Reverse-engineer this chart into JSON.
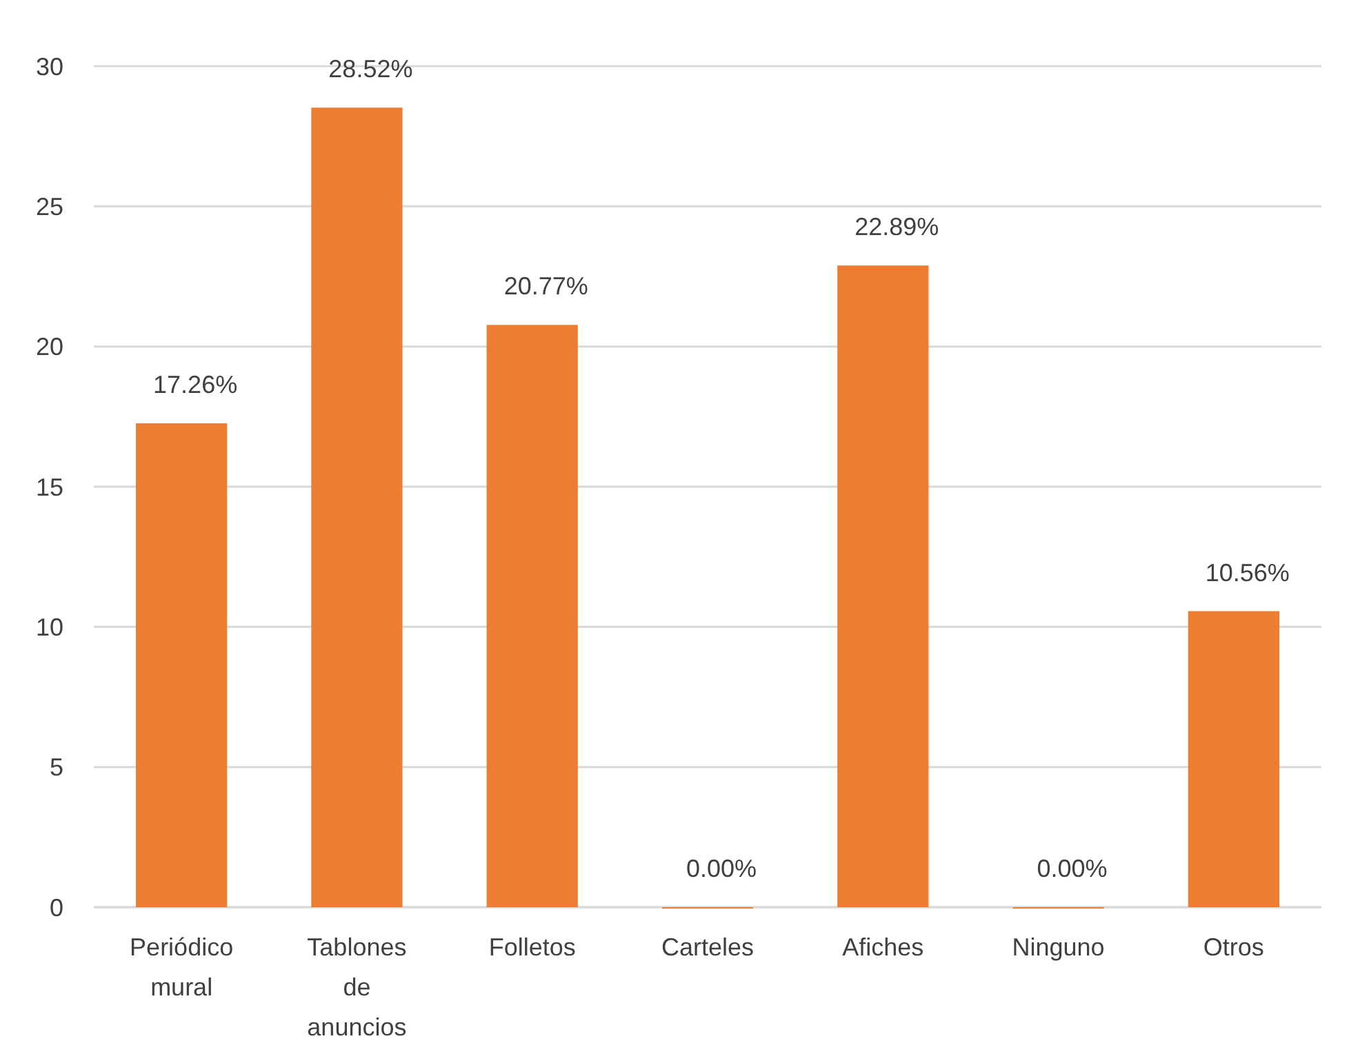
{
  "chart_data": {
    "type": "bar",
    "categories": [
      "Periódico mural",
      "Tablones de anuncios",
      "Folletos",
      "Carteles",
      "Afiches",
      "Ninguno",
      "Otros"
    ],
    "values": [
      17.26,
      28.52,
      20.77,
      0,
      22.89,
      0,
      10.56
    ],
    "value_labels": [
      "17.26%",
      "28.52%",
      "20.77%",
      "0.00%",
      "22.89%",
      "0.00%",
      "10.56%"
    ],
    "color": "#ed7d31",
    "ylim": [
      0,
      30
    ],
    "yticks": [
      0,
      5,
      10,
      15,
      20,
      25,
      30
    ],
    "grid": "y"
  }
}
